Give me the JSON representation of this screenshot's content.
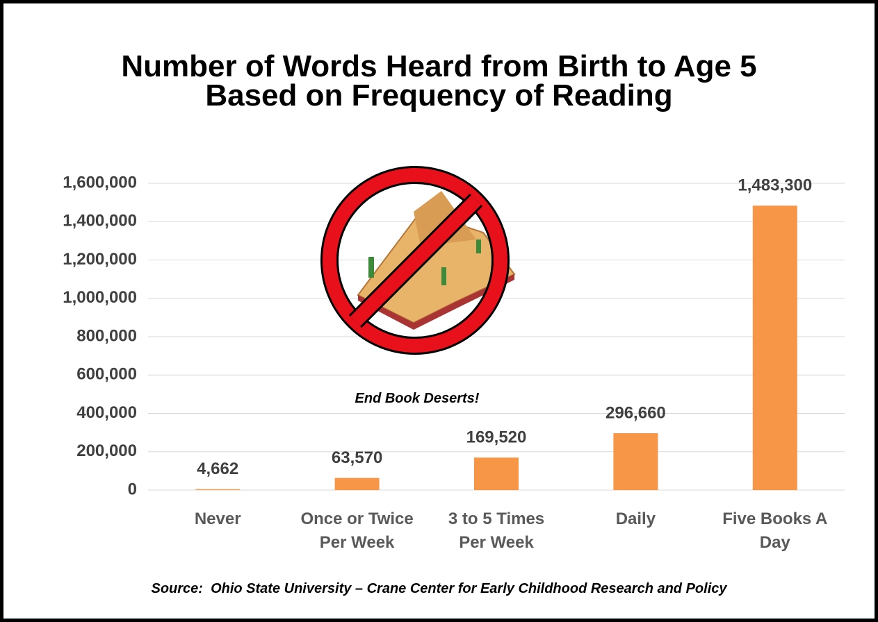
{
  "chart_data": {
    "type": "bar",
    "title": [
      "Number of Words Heard from Birth to Age 5",
      "Based on Frequency of Reading"
    ],
    "categories": [
      "Never",
      "Once or Twice Per Week",
      "3 to 5 Times Per Week",
      "Daily",
      "Five Books A Day"
    ],
    "values": [
      4662,
      63570,
      169520,
      296660,
      1483300
    ],
    "value_labels": [
      "4,662",
      "63,570",
      "169,520",
      "296,660",
      "1,483,300"
    ],
    "color": "#f79646",
    "ylim": [
      0,
      1600000
    ],
    "yticks": [
      0,
      {
        "value": 200000,
        "label": "200,000"
      },
      {
        "value": 400000,
        "label": "400,000"
      },
      {
        "value": 600000,
        "label": "600,000"
      },
      {
        "value": 800000,
        "label": "800,000"
      },
      {
        "value": 1000000,
        "label": "1,000,000"
      },
      {
        "value": 1200000,
        "label": "1,200,000"
      },
      {
        "value": 1400000,
        "label": "1,400,000"
      },
      {
        "value": 1600000,
        "label": "1,600,000"
      }
    ],
    "grid": true,
    "annotations": [
      "End Book Deserts!",
      "Source:  Ohio State University – Crane Center for Early Childhood Research and Policy"
    ]
  }
}
